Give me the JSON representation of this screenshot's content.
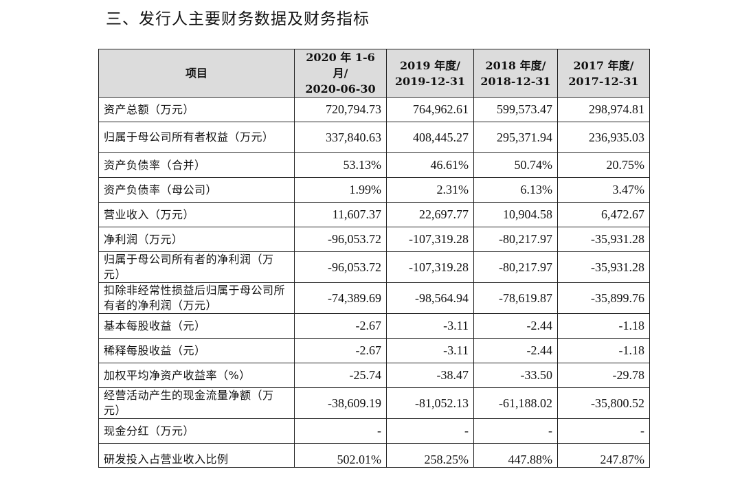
{
  "heading": "三、发行人主要财务数据及财务指标",
  "table": {
    "columns": [
      {
        "line1": "项目",
        "line2": ""
      },
      {
        "line1": "2020 年 1-6 月/",
        "line2": "2020-06-30"
      },
      {
        "line1": "2019 年度/",
        "line2": "2019-12-31"
      },
      {
        "line1": "2018 年度/",
        "line2": "2018-12-31"
      },
      {
        "line1": "2017 年度/",
        "line2": "2017-12-31"
      }
    ],
    "rows": [
      {
        "label": "资产总额（万元）",
        "values": [
          "720,794.73",
          "764,962.61",
          "599,573.47",
          "298,974.81"
        ]
      },
      {
        "label": "归属于母公司所有者权益（万元）",
        "values": [
          "337,840.63",
          "408,445.27",
          "295,371.94",
          "236,935.03"
        ]
      },
      {
        "label": "资产负债率（合并）",
        "values": [
          "53.13%",
          "46.61%",
          "50.74%",
          "20.75%"
        ]
      },
      {
        "label": "资产负债率（母公司）",
        "values": [
          "1.99%",
          "2.31%",
          "6.13%",
          "3.47%"
        ]
      },
      {
        "label": "营业收入（万元）",
        "values": [
          "11,607.37",
          "22,697.77",
          "10,904.58",
          "6,472.67"
        ]
      },
      {
        "label": "净利润（万元）",
        "values": [
          "-96,053.72",
          "-107,319.28",
          "-80,217.97",
          "-35,931.28"
        ]
      },
      {
        "label": "归属于母公司所有者的净利润（万元）",
        "values": [
          "-96,053.72",
          "-107,319.28",
          "-80,217.97",
          "-35,931.28"
        ]
      },
      {
        "label": "扣除非经常性损益后归属于母公司所有者的净利润（万元）",
        "values": [
          "-74,389.69",
          "-98,564.94",
          "-78,619.87",
          "-35,899.76"
        ]
      },
      {
        "label": "基本每股收益（元）",
        "values": [
          "-2.67",
          "-3.11",
          "-2.44",
          "-1.18"
        ]
      },
      {
        "label": "稀释每股收益（元）",
        "values": [
          "-2.67",
          "-3.11",
          "-2.44",
          "-1.18"
        ]
      },
      {
        "label": "加权平均净资产收益率（%）",
        "values": [
          "-25.74",
          "-38.47",
          "-33.50",
          "-29.78"
        ]
      },
      {
        "label": "经营活动产生的现金流量净额（万元）",
        "values": [
          "-38,609.19",
          "-81,052.13",
          "-61,188.02",
          "-35,800.52"
        ]
      },
      {
        "label": "现金分红（万元）",
        "values": [
          "-",
          "-",
          "-",
          "-"
        ]
      },
      {
        "label": "研发投入占营业收入比例",
        "values": [
          "502.01%",
          "258.25%",
          "447.88%",
          "247.87%"
        ]
      }
    ]
  }
}
